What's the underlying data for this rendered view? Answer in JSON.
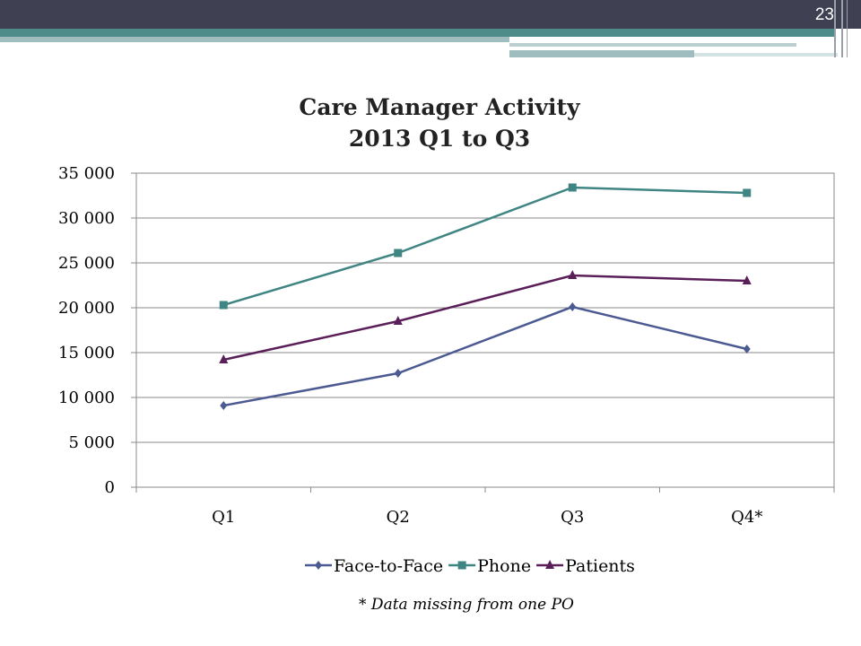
{
  "slide": {
    "number": "23"
  },
  "chart_data": {
    "type": "line",
    "title_line1": "Care Manager Activity",
    "title_line2": "2013 Q1 to  Q3",
    "categories": [
      "Q1",
      "Q2",
      "Q3",
      "Q4*"
    ],
    "ylim": [
      0,
      35000
    ],
    "yticks": [
      0,
      5000,
      10000,
      15000,
      20000,
      25000,
      30000,
      35000
    ],
    "ytick_labels": [
      "0",
      "5 000",
      "10 000",
      "15 000",
      "20 000",
      "25 000",
      "30 000",
      "35 000"
    ],
    "grid": true,
    "legend_position": "bottom",
    "series": [
      {
        "name": "Face-to-Face",
        "marker": "diamond",
        "color": "#4b5a91",
        "values": [
          9100,
          12700,
          20100,
          15400
        ]
      },
      {
        "name": "Phone",
        "marker": "square",
        "color": "#3f8583",
        "values": [
          20300,
          26100,
          33400,
          32800
        ]
      },
      {
        "name": "Patients",
        "marker": "triangle",
        "color": "#5a1f58",
        "values": [
          14200,
          18500,
          23600,
          23000
        ]
      }
    ]
  },
  "footnote": "* Data missing from one PO"
}
